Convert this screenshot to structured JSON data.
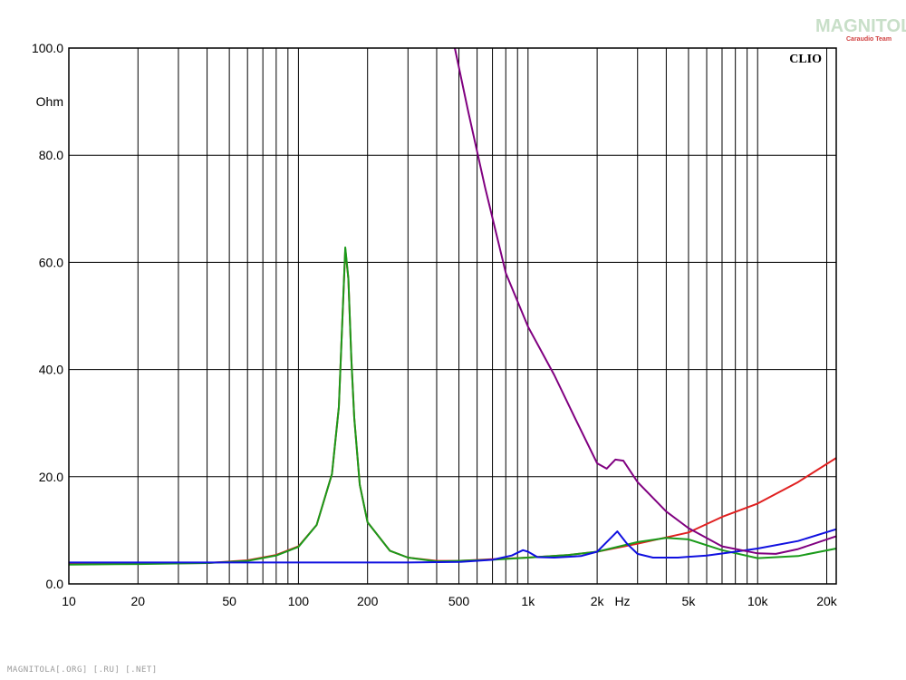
{
  "watermark": {
    "logo": "MAGNITOLA",
    "subtitle": "Caraudio Team"
  },
  "footer": "MAGNITOLA[.ORG] [.RU] [.NET]",
  "chart_data": {
    "type": "line",
    "brand_label": "CLIO",
    "x_scale": "log",
    "xlim": [
      10,
      22000
    ],
    "ylim": [
      0,
      100
    ],
    "x_unit_label": "Hz",
    "y_unit_label": "Ohm",
    "x_ticks": [
      {
        "value": 10,
        "label": "10"
      },
      {
        "value": 20,
        "label": "20"
      },
      {
        "value": 50,
        "label": "50"
      },
      {
        "value": 100,
        "label": "100"
      },
      {
        "value": 200,
        "label": "200"
      },
      {
        "value": 500,
        "label": "500"
      },
      {
        "value": 1000,
        "label": "1k"
      },
      {
        "value": 2000,
        "label": "2k"
      },
      {
        "value": 5000,
        "label": "5k"
      },
      {
        "value": 10000,
        "label": "10k"
      },
      {
        "value": 20000,
        "label": "20k"
      }
    ],
    "y_ticks": [
      {
        "value": 0,
        "label": "0.0"
      },
      {
        "value": 20,
        "label": "20.0"
      },
      {
        "value": 40,
        "label": "40.0"
      },
      {
        "value": 60,
        "label": "60.0"
      },
      {
        "value": 80,
        "label": "80.0"
      },
      {
        "value": 100,
        "label": "100.0"
      }
    ],
    "grid": true,
    "series": [
      {
        "color": "#e02020",
        "points": [
          [
            10,
            3.8
          ],
          [
            20,
            3.8
          ],
          [
            40,
            3.9
          ],
          [
            60,
            4.4
          ],
          [
            80,
            5.4
          ],
          [
            100,
            7.0
          ],
          [
            120,
            11.0
          ],
          [
            140,
            20.5
          ],
          [
            150,
            33
          ],
          [
            155,
            48
          ],
          [
            160,
            62.5
          ],
          [
            165,
            57
          ],
          [
            170,
            42
          ],
          [
            175,
            31
          ],
          [
            185,
            18.5
          ],
          [
            200,
            11.5
          ],
          [
            250,
            6.2
          ],
          [
            300,
            4.9
          ],
          [
            400,
            4.3
          ],
          [
            500,
            4.3
          ],
          [
            700,
            4.6
          ],
          [
            1000,
            4.9
          ],
          [
            1500,
            5.4
          ],
          [
            2000,
            6.0
          ],
          [
            3000,
            7.5
          ],
          [
            5000,
            9.6
          ],
          [
            7000,
            12.5
          ],
          [
            10000,
            15.0
          ],
          [
            15000,
            19.0
          ],
          [
            22000,
            23.5
          ]
        ]
      },
      {
        "color": "#1a9a1a",
        "points": [
          [
            10,
            3.6
          ],
          [
            20,
            3.7
          ],
          [
            40,
            3.9
          ],
          [
            60,
            4.3
          ],
          [
            80,
            5.3
          ],
          [
            100,
            6.9
          ],
          [
            120,
            11.0
          ],
          [
            140,
            20.5
          ],
          [
            150,
            33
          ],
          [
            155,
            48
          ],
          [
            160,
            62.8
          ],
          [
            165,
            57
          ],
          [
            170,
            42
          ],
          [
            175,
            31
          ],
          [
            185,
            18.5
          ],
          [
            200,
            11.5
          ],
          [
            250,
            6.2
          ],
          [
            300,
            4.9
          ],
          [
            400,
            4.2
          ],
          [
            500,
            4.3
          ],
          [
            700,
            4.5
          ],
          [
            1000,
            4.9
          ],
          [
            1500,
            5.4
          ],
          [
            2000,
            6.0
          ],
          [
            3000,
            7.8
          ],
          [
            4000,
            8.6
          ],
          [
            5000,
            8.3
          ],
          [
            7000,
            6.3
          ],
          [
            10000,
            4.8
          ],
          [
            15000,
            5.2
          ],
          [
            22000,
            6.6
          ]
        ]
      },
      {
        "color": "#1010e0",
        "points": [
          [
            10,
            4.0
          ],
          [
            100,
            4.0
          ],
          [
            300,
            4.0
          ],
          [
            500,
            4.1
          ],
          [
            700,
            4.5
          ],
          [
            850,
            5.3
          ],
          [
            950,
            6.3
          ],
          [
            1000,
            6.0
          ],
          [
            1100,
            5.0
          ],
          [
            1300,
            4.9
          ],
          [
            1700,
            5.2
          ],
          [
            2000,
            6.0
          ],
          [
            2200,
            7.8
          ],
          [
            2450,
            9.8
          ],
          [
            2700,
            7.5
          ],
          [
            3000,
            5.6
          ],
          [
            3500,
            4.9
          ],
          [
            4500,
            4.9
          ],
          [
            6000,
            5.3
          ],
          [
            8000,
            6.0
          ],
          [
            10000,
            6.6
          ],
          [
            15000,
            8.0
          ],
          [
            22000,
            10.2
          ]
        ]
      },
      {
        "color": "#800080",
        "points": [
          [
            480,
            100
          ],
          [
            550,
            88
          ],
          [
            650,
            74
          ],
          [
            800,
            58
          ],
          [
            1000,
            48
          ],
          [
            1300,
            39
          ],
          [
            1600,
            31
          ],
          [
            2000,
            22.5
          ],
          [
            2200,
            21.5
          ],
          [
            2400,
            23.2
          ],
          [
            2600,
            23
          ],
          [
            3000,
            19
          ],
          [
            4000,
            13.5
          ],
          [
            5000,
            10.4
          ],
          [
            7000,
            7
          ],
          [
            10000,
            5.7
          ],
          [
            12000,
            5.6
          ],
          [
            15000,
            6.5
          ],
          [
            22000,
            8.9
          ]
        ]
      }
    ]
  }
}
